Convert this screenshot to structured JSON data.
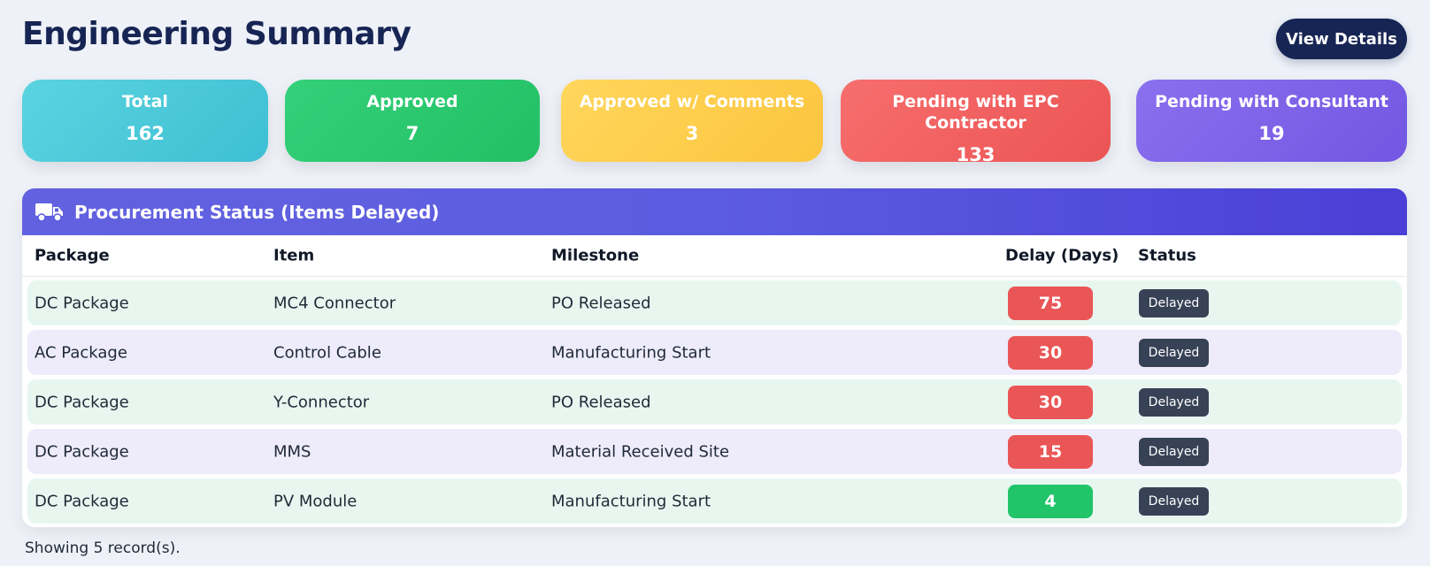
{
  "header": {
    "title": "Engineering Summary",
    "view_details_label": "View Details"
  },
  "cards": [
    {
      "label": "Total",
      "value": "162",
      "color": "#4cc8db"
    },
    {
      "label": "Approved",
      "value": "7",
      "color": "#2bc86e"
    },
    {
      "label": "Approved w/ Comments",
      "value": "3",
      "color": "#fdcd4b"
    },
    {
      "label": "Pending with EPC Contractor",
      "value": "133",
      "color": "#f06060"
    },
    {
      "label": "Pending with Consultant",
      "value": "19",
      "color": "#7c62e8"
    }
  ],
  "procurement": {
    "title": "Procurement Status (Items Delayed)",
    "icon": "truck-icon",
    "columns": {
      "package": "Package",
      "item": "Item",
      "milestone": "Milestone",
      "delay": "Delay (Days)",
      "status": "Status"
    },
    "rows": [
      {
        "package": "DC Package",
        "item": "MC4 Connector",
        "milestone": "PO Released",
        "delay": "75",
        "status": "Delayed",
        "delay_color": "#ea5656"
      },
      {
        "package": "AC Package",
        "item": "Control Cable",
        "milestone": "Manufacturing Start",
        "delay": "30",
        "status": "Delayed",
        "delay_color": "#ea5656"
      },
      {
        "package": "DC Package",
        "item": "Y-Connector",
        "milestone": "PO Released",
        "delay": "30",
        "status": "Delayed",
        "delay_color": "#ea5656"
      },
      {
        "package": "DC Package",
        "item": "MMS",
        "milestone": "Material Received Site",
        "delay": "15",
        "status": "Delayed",
        "delay_color": "#ea5656"
      },
      {
        "package": "DC Package",
        "item": "PV Module",
        "milestone": "Manufacturing Start",
        "delay": "4",
        "status": "Delayed",
        "delay_color": "#22c46a"
      }
    ]
  },
  "footer": {
    "record_count_text": "Showing 5 record(s)."
  }
}
